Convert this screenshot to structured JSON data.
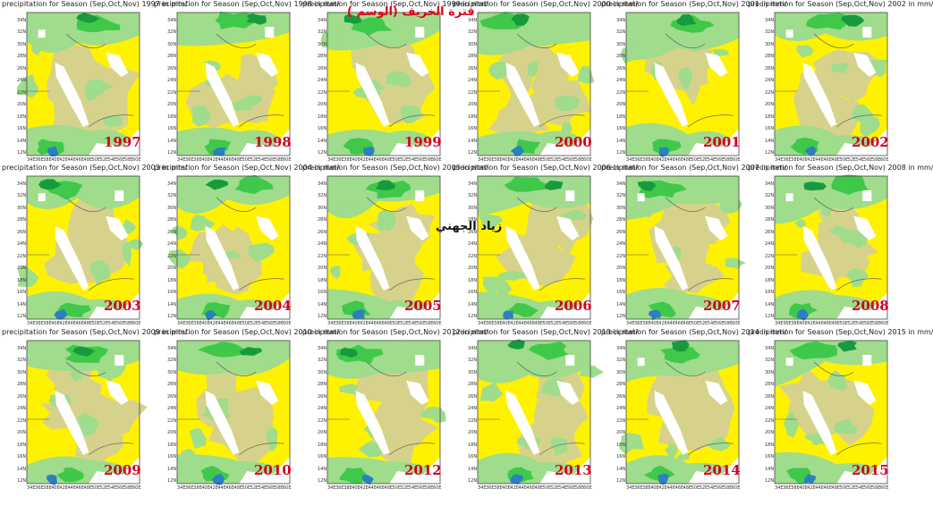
{
  "title_arabic": "( فترة الخريف (الوسم",
  "author_arabic": "زياد الجهني",
  "colors": {
    "khaki": "#d6d28c",
    "yellow": "#fff200",
    "light_green": "#9fdc8c",
    "green": "#3fc84a",
    "dark_green": "#179a3d",
    "blue": "#2b7fc2",
    "year_red": "#d2001f",
    "border_line": "#555555"
  },
  "panels": [
    {
      "caption": "precipitation for Season (Sep,Oct,Nov) 1997 in mm/",
      "year": "1997"
    },
    {
      "caption": "precipitation for Season (Sep,Oct,Nov) 1998 in mm/",
      "year": "1998"
    },
    {
      "caption": "precipitation for Season (Sep,Oct,Nov) 1999 in mm/",
      "year": "1999"
    },
    {
      "caption": "precipitation for Season (Sep,Oct,Nov) 2000 in mm/",
      "year": "2000"
    },
    {
      "caption": "precipitation for Season (Sep,Oct,Nov) 2001 in mm/",
      "year": "2001"
    },
    {
      "caption": "precipitation for Season (Sep,Oct,Nov) 2002 in mm/",
      "year": "2002"
    },
    {
      "caption": "precipitation for Season (Sep,Oct,Nov) 2003 in mm/",
      "year": "2003"
    },
    {
      "caption": "precipitation for Season (Sep,Oct,Nov) 2004 in mm/",
      "year": "2004"
    },
    {
      "caption": "precipitation for Season (Sep,Oct,Nov) 2005 in mm/",
      "year": "2005"
    },
    {
      "caption": "precipitation for Season (Sep,Oct,Nov) 2006 in mm/",
      "year": "2006"
    },
    {
      "caption": "precipitation for Season (Sep,Oct,Nov) 2007 in mm/",
      "year": "2007"
    },
    {
      "caption": "precipitation for Season (Sep,Oct,Nov) 2008 in mm/",
      "year": "2008"
    },
    {
      "caption": "precipitation for Season (Sep,Oct,Nov) 2009 in mm/",
      "year": "2009"
    },
    {
      "caption": "precipitation for Season (Sep,Oct,Nov) 2010 in mm/",
      "year": "2010"
    },
    {
      "caption": "precipitation for Season (Sep,Oct,Nov) 2012 in mm/",
      "year": "2012"
    },
    {
      "caption": "precipitation for Season (Sep,Oct,Nov) 2013 in mm/",
      "year": "2013"
    },
    {
      "caption": "precipitation for Season (Sep,Oct,Nov) 2014 in mm/",
      "year": "2014"
    },
    {
      "caption": "precipitation for Season (Sep,Oct,Nov) 2015 in mm/",
      "year": "2015"
    }
  ],
  "lat_labels": [
    "34N",
    "32N",
    "30N",
    "28N",
    "26N",
    "24N",
    "22N",
    "20N",
    "18N",
    "16N",
    "14N",
    "12N"
  ],
  "lon_labels": [
    "34E",
    "36E",
    "38E",
    "40E",
    "42E",
    "44E",
    "46E",
    "48E",
    "50E",
    "52E",
    "54E",
    "56E",
    "58E",
    "60E"
  ]
}
